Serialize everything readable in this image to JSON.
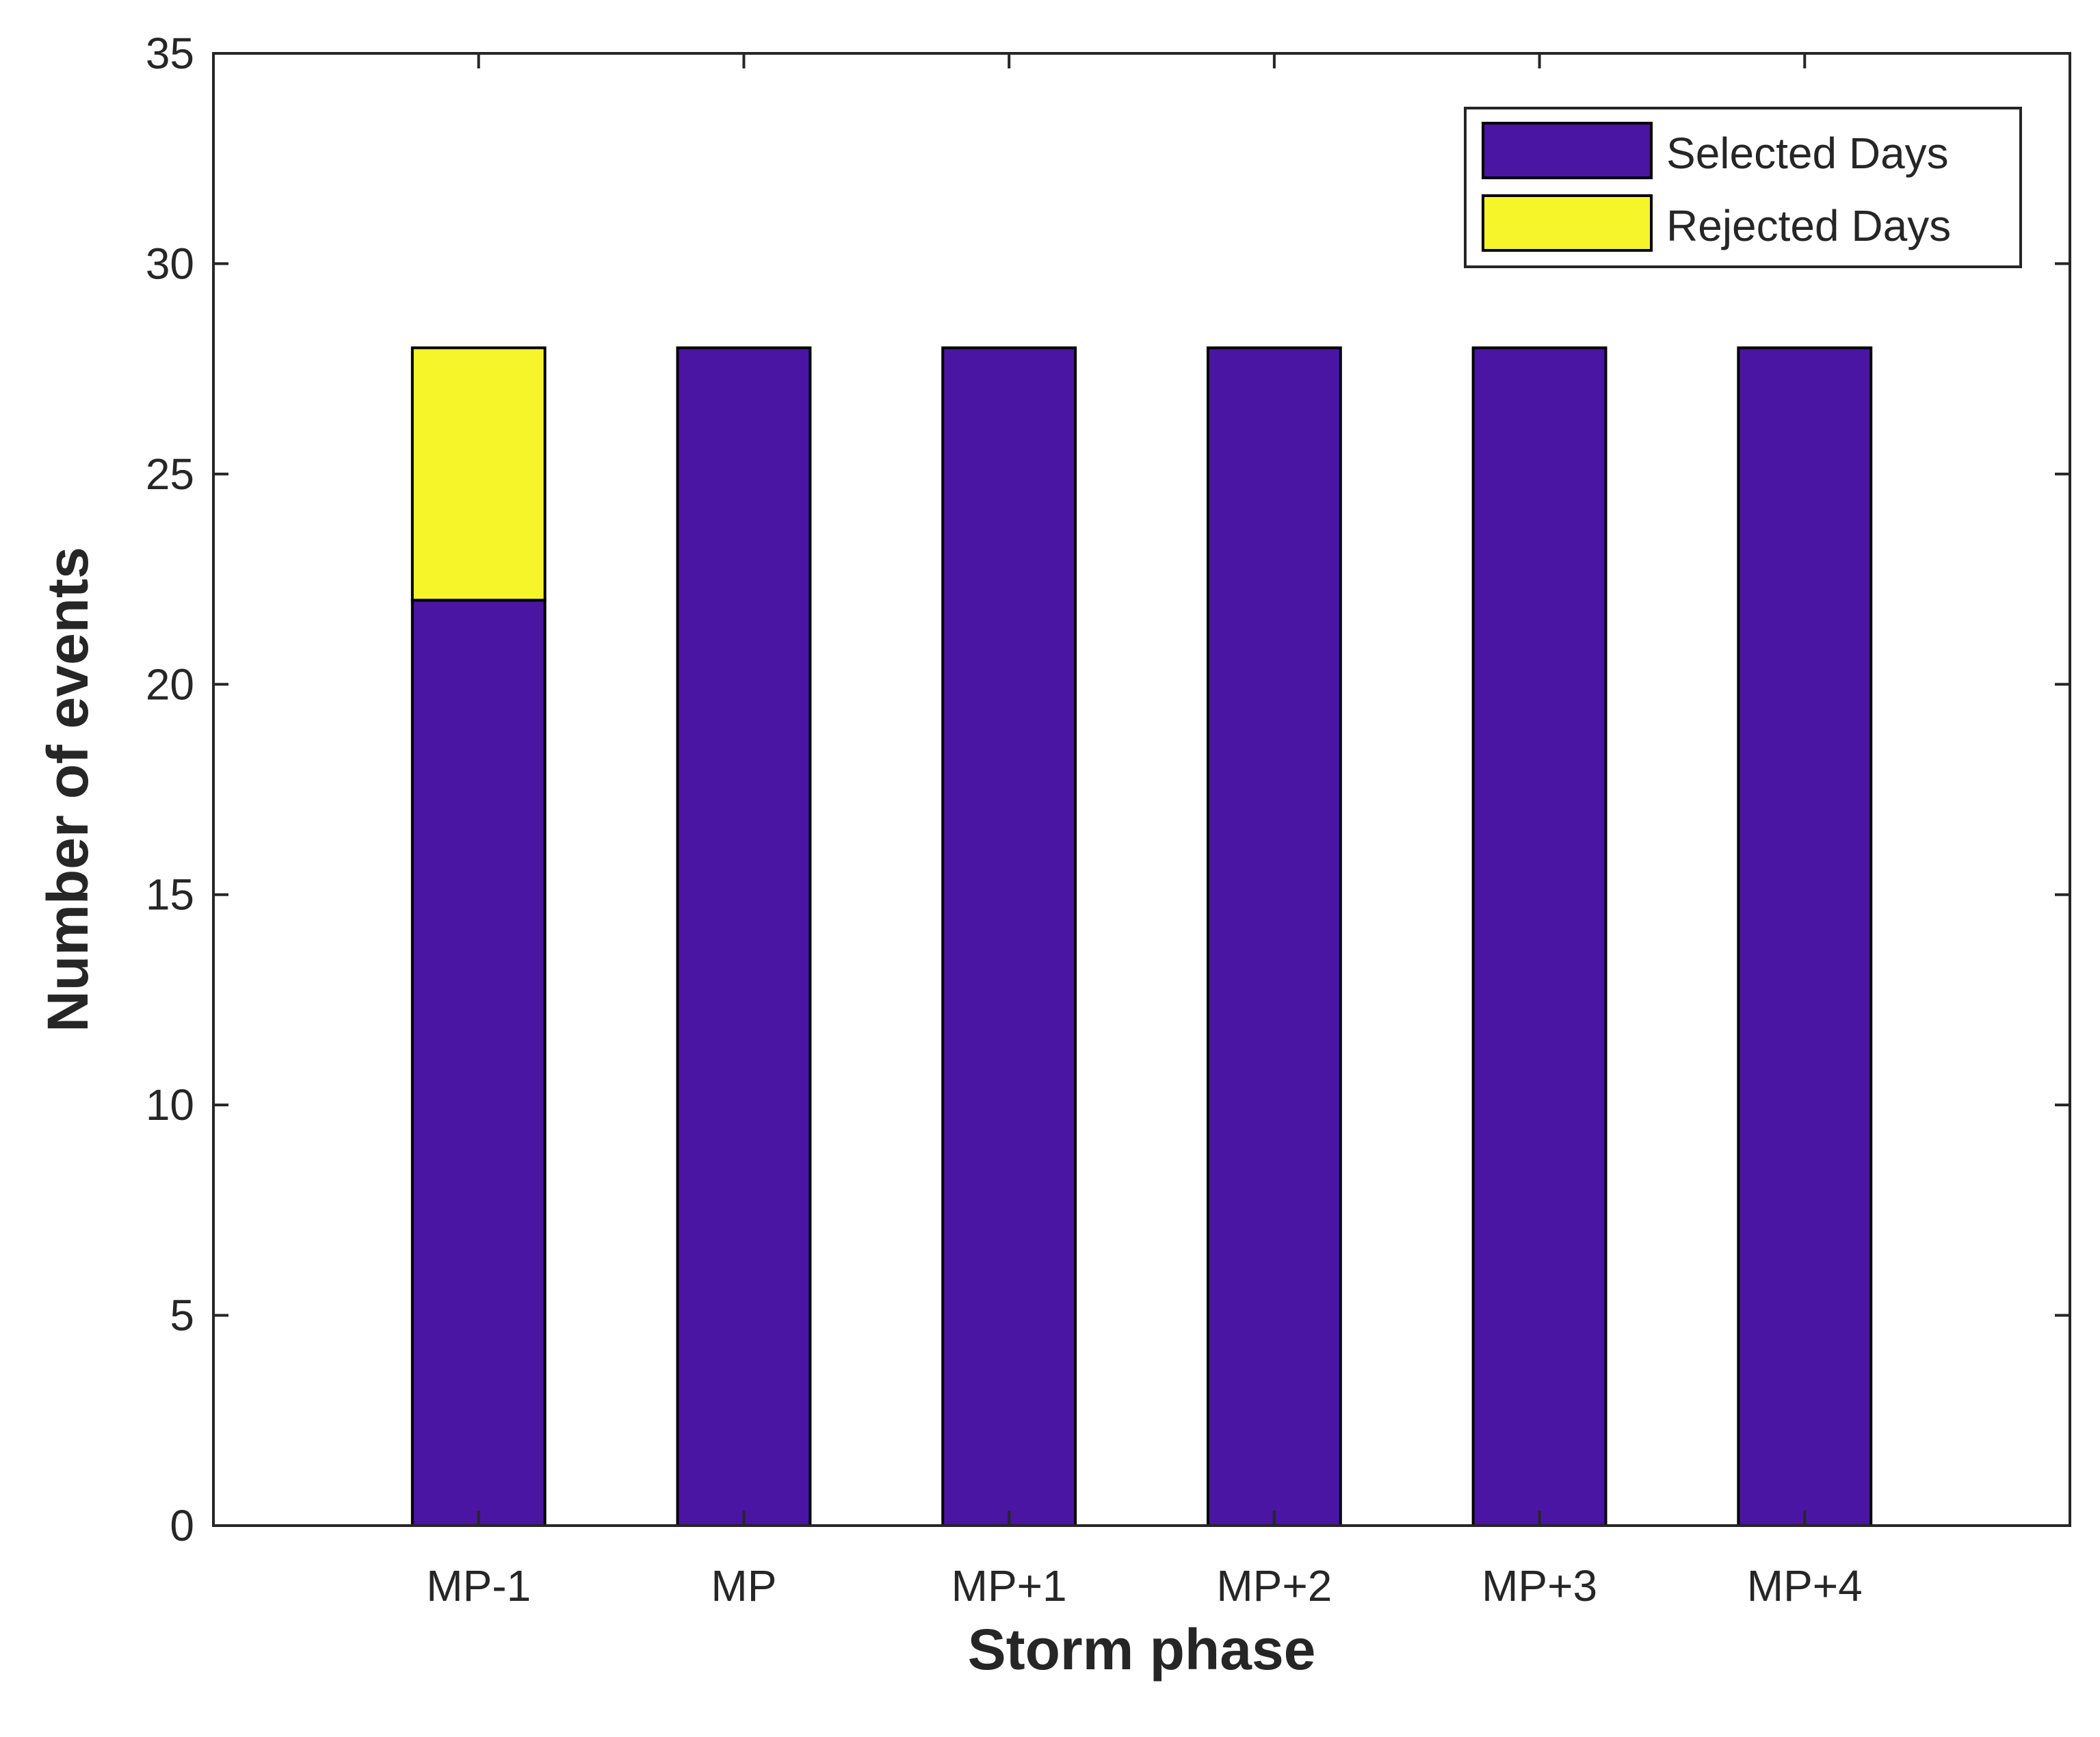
{
  "chart_data": {
    "type": "bar",
    "stacked": true,
    "categories": [
      "MP-1",
      "MP",
      "MP+1",
      "MP+2",
      "MP+3",
      "MP+4"
    ],
    "series": [
      {
        "name": "Selected Days",
        "values": [
          22,
          28,
          28,
          28,
          28,
          28
        ],
        "color": "#4a15a3"
      },
      {
        "name": "Rejected Days",
        "values": [
          6,
          0,
          0,
          0,
          0,
          0
        ],
        "color": "#f5f52a"
      }
    ],
    "xlabel": "Storm phase",
    "ylabel": "Number of events",
    "ylim": [
      0,
      35
    ],
    "yticks": [
      0,
      5,
      10,
      15,
      20,
      25,
      30,
      35
    ],
    "grid": false,
    "legend_position": "top-right"
  }
}
